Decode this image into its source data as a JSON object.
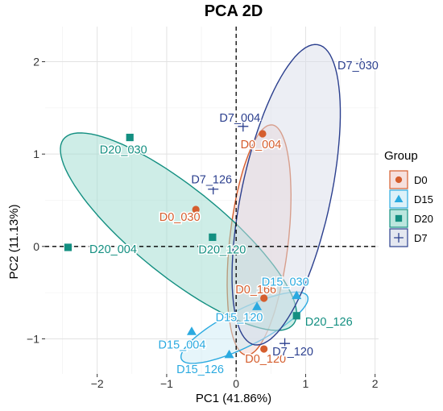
{
  "chart_data": {
    "type": "scatter",
    "title": "PCA 2D",
    "xlabel": "PC1 (41.86%)",
    "ylabel": "PC2 (11.13%)",
    "xlim": [
      -2.75,
      2.05
    ],
    "ylim": [
      -1.38,
      2.38
    ],
    "xticks": [
      -2,
      -1,
      0,
      1,
      2
    ],
    "yticks": [
      -1,
      0,
      1,
      2
    ],
    "xtick_labels": [
      "−2",
      "−1",
      "0",
      "1",
      "2"
    ],
    "ytick_labels": [
      "−1",
      "0",
      "1",
      "2"
    ],
    "grid": true,
    "reference_lines": {
      "x": 0,
      "y": 0,
      "style": "dashed"
    },
    "legend": {
      "title": "Group",
      "position": "right",
      "entries": [
        {
          "label": "D0",
          "shape": "circle",
          "color": "#D55E2E",
          "fill": "#F2D3D0"
        },
        {
          "label": "D15",
          "shape": "triangle",
          "color": "#2BAAE0",
          "fill": "#CDEBF6"
        },
        {
          "label": "D20",
          "shape": "square",
          "color": "#138F81",
          "fill": "#9EDCD0"
        },
        {
          "label": "D7",
          "shape": "cross",
          "color": "#2B3F8E",
          "fill": "#D9DDEA"
        }
      ]
    },
    "series": [
      {
        "name": "D0",
        "points": [
          {
            "label": "D0_004",
            "x": 0.38,
            "y": 1.22
          },
          {
            "label": "D0_030",
            "x": -0.58,
            "y": 0.4
          },
          {
            "label": "D0_166",
            "x": 0.4,
            "y": -0.56
          },
          {
            "label": "D0_120",
            "x": 0.4,
            "y": -1.11
          }
        ],
        "ellipse": {
          "cx": 0.33,
          "cy": 0.07,
          "rx": 1.26,
          "ry": 0.42,
          "angle": 81
        }
      },
      {
        "name": "D15",
        "points": [
          {
            "label": "D15_030",
            "x": 0.87,
            "y": -0.53
          },
          {
            "label": "D15_120",
            "x": 0.3,
            "y": -0.65
          },
          {
            "label": "D15_004",
            "x": -0.64,
            "y": -0.92
          },
          {
            "label": "D15_126",
            "x": -0.1,
            "y": -1.17
          }
        ],
        "ellipse": {
          "cx": 0.12,
          "cy": -0.88,
          "rx": 0.97,
          "ry": 0.21,
          "angle": 20
        }
      },
      {
        "name": "D20",
        "points": [
          {
            "label": "D20_030",
            "x": -1.53,
            "y": 1.18
          },
          {
            "label": "D20_004",
            "x": -2.42,
            "y": -0.01
          },
          {
            "label": "D20_120",
            "x": -0.34,
            "y": 0.1
          },
          {
            "label": "D20_126",
            "x": 0.87,
            "y": -0.75
          }
        ],
        "ellipse": {
          "cx": -0.83,
          "cy": 0.16,
          "rx": 1.94,
          "ry": 0.52,
          "angle": -30
        }
      },
      {
        "name": "D7",
        "points": [
          {
            "label": "D7_030",
            "x": 1.8,
            "y": 1.98
          },
          {
            "label": "D7_004",
            "x": 0.1,
            "y": 1.3
          },
          {
            "label": "D7_126",
            "x": -0.33,
            "y": 0.62
          },
          {
            "label": "D7_120",
            "x": 0.7,
            "y": -1.05
          }
        ],
        "ellipse": {
          "cx": 0.72,
          "cy": 0.56,
          "rx": 1.69,
          "ry": 0.63,
          "angle": 73
        }
      }
    ]
  }
}
